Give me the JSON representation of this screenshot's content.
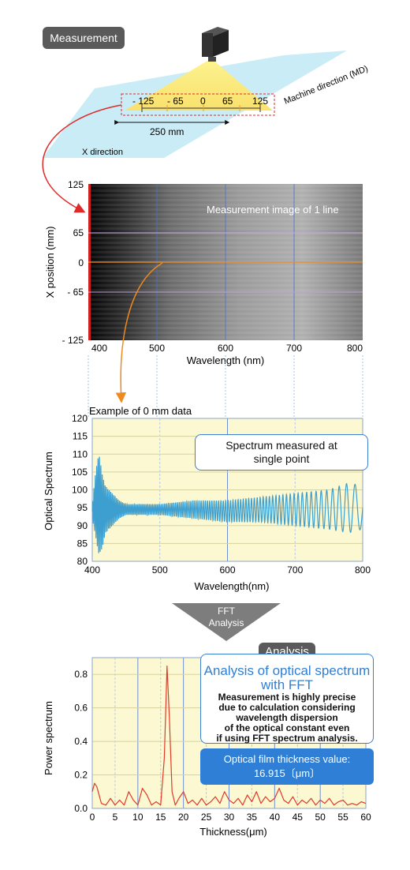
{
  "measurement_badge": "Measurement",
  "diagram": {
    "scale_labels": [
      "- 125",
      "- 65",
      "0",
      "65",
      "125"
    ],
    "width_label": "250 mm",
    "md_label": "Machine direction (MD)",
    "x_dir_label": "X direction"
  },
  "image_panel": {
    "overlay_text": "Measurement image of 1 line",
    "y_ticks": [
      "125",
      "65",
      "0",
      "- 65",
      "- 125"
    ],
    "x_ticks": [
      "400",
      "500",
      "600",
      "700",
      "800"
    ],
    "xlabel": "Wavelength (nm)",
    "ylabel": "X position (mm)"
  },
  "spectrum_callout": [
    "Spectrum measured at",
    "single point"
  ],
  "fft_arrow": [
    "FFT",
    "Analysis"
  ],
  "analysis_badge": "Analysis",
  "analysis_box": {
    "title": [
      "Analysis of optical spectrum",
      "with FFT"
    ],
    "body": [
      "Measurement is highly precise",
      "due to calculation considering",
      "wavelength dispersion",
      "of the optical constant even",
      "if using FFT spectrum analysis."
    ]
  },
  "thickness_box": [
    "Optical film thickness value:",
    "16.915〔μm〕"
  ],
  "colors": {
    "spectrum": "#3d9fd0",
    "power": "#e03a2a",
    "plot_bg": "#fbf8d2",
    "accent": "#2f7fd6"
  },
  "chart_data": [
    {
      "type": "line",
      "title": "Example of 0 mm data",
      "xlabel": "Wavelength(nm)",
      "ylabel": "Optical Spectrum",
      "xlim": [
        400,
        800
      ],
      "ylim": [
        80,
        120
      ],
      "xticks": [
        400,
        500,
        600,
        700,
        800
      ],
      "yticks": [
        80,
        85,
        90,
        95,
        100,
        105,
        110,
        115,
        120
      ],
      "grid": true,
      "series": [
        {
          "x": [
            400,
            405,
            410,
            415,
            420,
            430,
            440,
            450,
            500,
            550,
            600,
            650,
            700,
            750,
            780,
            800
          ],
          "y_high": [
            96,
            105,
            111,
            104,
            101,
            99,
            97,
            96,
            96,
            97,
            97,
            98,
            99,
            100,
            102,
            101
          ],
          "y_low": [
            92,
            87,
            81,
            84,
            88,
            90,
            92,
            93,
            93,
            92,
            91,
            91,
            90,
            89,
            88,
            89
          ]
        }
      ]
    },
    {
      "type": "line",
      "xlabel": "Thickness(μm)",
      "ylabel": "Power spectrum",
      "xlim": [
        0,
        60
      ],
      "ylim": [
        0,
        0.9
      ],
      "xticks": [
        0,
        5,
        10,
        15,
        20,
        25,
        30,
        35,
        40,
        45,
        50,
        55,
        60
      ],
      "yticks": [
        0.0,
        0.2,
        0.4,
        0.6,
        0.8
      ],
      "grid": true,
      "series": [
        {
          "x": [
            0,
            0.5,
            1,
            2,
            3,
            4,
            5,
            6,
            7,
            8,
            9,
            10,
            11,
            12,
            13,
            14,
            15,
            15.8,
            16.4,
            16.9,
            17.5,
            18.2,
            19,
            20,
            21,
            22,
            23,
            24,
            25,
            26,
            27,
            28,
            29,
            30,
            31,
            32,
            33,
            34,
            35,
            36,
            37,
            38,
            39,
            40,
            41,
            42,
            43,
            44,
            45,
            46,
            47,
            48,
            49,
            50,
            51,
            52,
            53,
            54,
            55,
            56,
            57,
            58,
            59,
            60
          ],
          "y": [
            0.1,
            0.15,
            0.13,
            0.03,
            0.02,
            0.06,
            0.02,
            0.05,
            0.02,
            0.1,
            0.05,
            0.02,
            0.12,
            0.08,
            0.02,
            0.04,
            0.02,
            0.3,
            0.85,
            0.55,
            0.1,
            0.02,
            0.06,
            0.1,
            0.03,
            0.05,
            0.02,
            0.06,
            0.02,
            0.04,
            0.07,
            0.03,
            0.1,
            0.05,
            0.03,
            0.06,
            0.02,
            0.08,
            0.04,
            0.1,
            0.03,
            0.07,
            0.04,
            0.06,
            0.12,
            0.05,
            0.03,
            0.07,
            0.02,
            0.05,
            0.03,
            0.06,
            0.02,
            0.05,
            0.03,
            0.06,
            0.02,
            0.04,
            0.05,
            0.02,
            0.03,
            0.02,
            0.04,
            0.03
          ]
        }
      ]
    }
  ]
}
